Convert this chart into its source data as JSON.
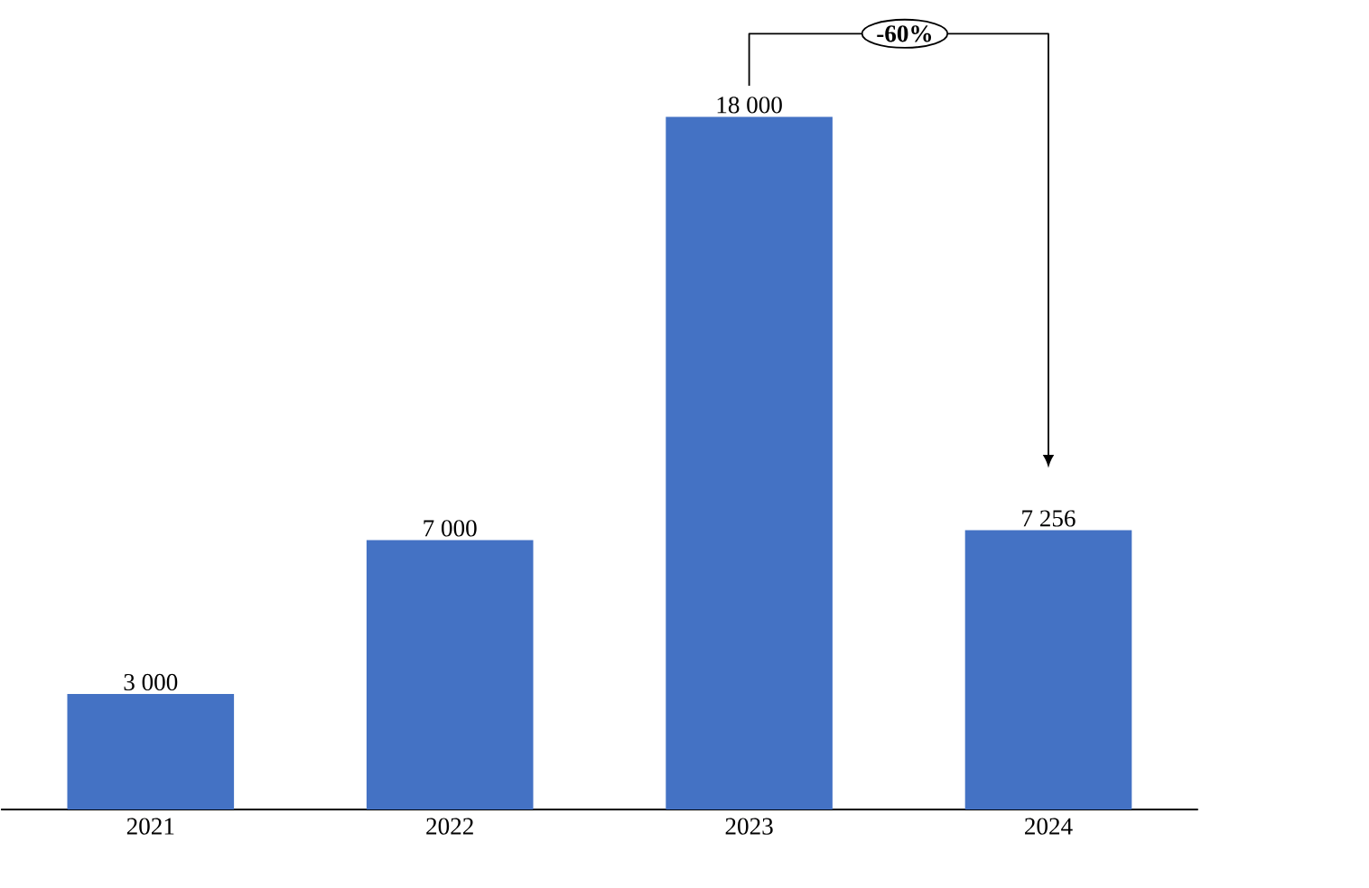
{
  "chart_data": {
    "type": "bar",
    "categories": [
      "2021",
      "2022",
      "2023",
      "2024"
    ],
    "values": [
      3000,
      7000,
      18000,
      7256
    ],
    "value_labels": [
      "3 000",
      "7 000",
      "18 000",
      "7 256"
    ],
    "color": "#4472c4",
    "annotations": [
      "-60%"
    ]
  }
}
